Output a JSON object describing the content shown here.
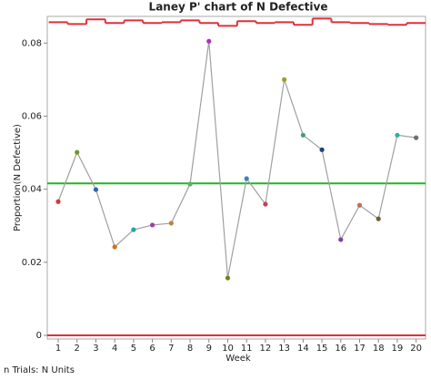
{
  "chart_data": {
    "type": "control",
    "title": "Laney P' chart of N Defective",
    "x_label": "Week",
    "y_label": "Proportion(N Defective)",
    "footnote": "n Trials: N Units",
    "x": [
      1,
      2,
      3,
      4,
      5,
      6,
      7,
      8,
      9,
      10,
      11,
      12,
      13,
      14,
      15,
      16,
      17,
      18,
      19,
      20
    ],
    "xlim": [
      0.42,
      20.5
    ],
    "xticks": [
      1,
      2,
      3,
      4,
      5,
      6,
      7,
      8,
      9,
      10,
      11,
      12,
      13,
      14,
      15,
      16,
      17,
      18,
      19,
      20
    ],
    "ylim": [
      -0.001,
      0.0873
    ],
    "yticks": [
      0,
      0.02,
      0.04,
      0.06,
      0.08
    ],
    "series": [
      {
        "name": "Proportion",
        "color": "#a0a0a0",
        "values": [
          0.0366,
          0.0501,
          0.0399,
          0.0242,
          0.0289,
          0.0302,
          0.0307,
          0.0414,
          0.0805,
          0.0157,
          0.0429,
          0.0359,
          0.07,
          0.0548,
          0.0508,
          0.0262,
          0.0356,
          0.0319,
          0.0548,
          0.0541
        ],
        "point_colors": [
          "#d03a3a",
          "#6a9a2a",
          "#3060c0",
          "#d07020",
          "#30a0a0",
          "#a040a0",
          "#c08040",
          "#60b060",
          "#b030c0",
          "#708020",
          "#4080c0",
          "#c04060",
          "#a0a020",
          "#40a080",
          "#204080",
          "#8040a0",
          "#c07050",
          "#706030",
          "#30b0a0",
          "#707070"
        ]
      }
    ],
    "center": {
      "value": 0.0416,
      "color": "#22b522"
    },
    "ucl": {
      "values": [
        0.0857,
        0.0852,
        0.0865,
        0.0855,
        0.0862,
        0.0855,
        0.0857,
        0.0862,
        0.0855,
        0.0847,
        0.086,
        0.0855,
        0.0857,
        0.085,
        0.0867,
        0.0857,
        0.0855,
        0.0852,
        0.085,
        0.0855
      ],
      "color": "#e0303a"
    },
    "lcl": {
      "value": 0,
      "color": "#e0303a"
    }
  }
}
